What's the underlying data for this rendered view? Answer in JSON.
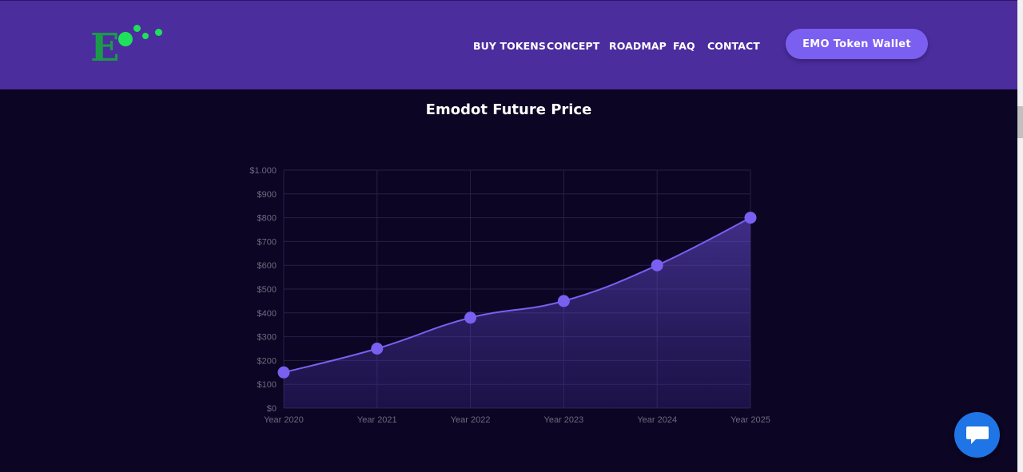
{
  "header": {
    "logo_letter": "E",
    "nav": [
      {
        "label": "BUY TOKENS"
      },
      {
        "label": "CONCEPT"
      },
      {
        "label": "ROADMAP"
      },
      {
        "label": "FAQ"
      },
      {
        "label": "CONTACT"
      }
    ],
    "wallet_button": "EMO Token Wallet"
  },
  "section": {
    "title": "Emodot Future Price"
  },
  "colors": {
    "header_bg": "#4b2d9e",
    "page_bg": "#0c0523",
    "accent": "#7b5ff0",
    "logo_green": "#1fe05a",
    "chat_blue": "#1f74e6"
  },
  "chart_data": {
    "type": "line",
    "fill": "area",
    "categories": [
      "Year 2020",
      "Year 2021",
      "Year 2022",
      "Year 2023",
      "Year 2024",
      "Year 2025"
    ],
    "values": [
      150,
      250,
      380,
      450,
      600,
      800
    ],
    "ylim": [
      0,
      1000
    ],
    "yticks": [
      0,
      100,
      200,
      300,
      400,
      500,
      600,
      700,
      800,
      900,
      1000
    ],
    "ytick_labels": [
      "$0",
      "$100",
      "$200",
      "$300",
      "$400",
      "$500",
      "$600",
      "$700",
      "$800",
      "$900",
      "$1.000"
    ],
    "grid": true,
    "title": "",
    "xlabel": "",
    "ylabel": ""
  },
  "chat_widget": {
    "icon": "chat-bubble-icon"
  }
}
